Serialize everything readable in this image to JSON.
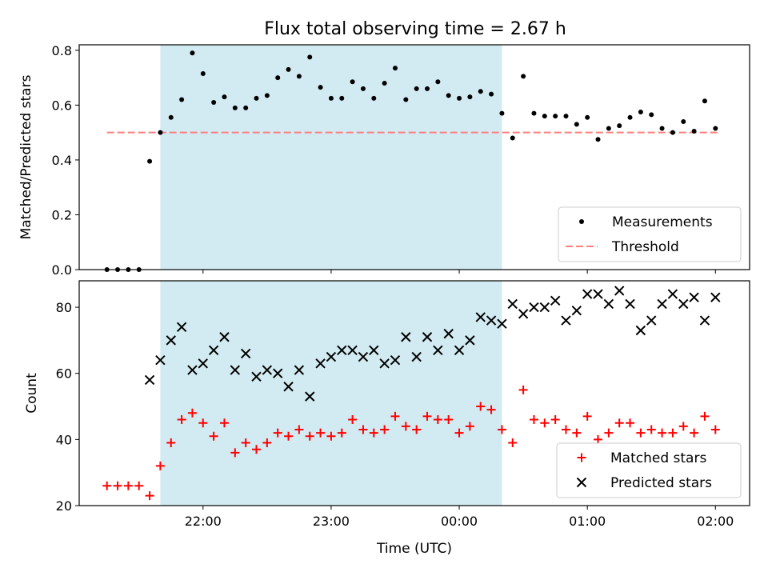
{
  "title": "Flux total observing time = 2.67 h",
  "colors": {
    "shade": "#add8e6",
    "measurements": "#000000",
    "threshold": "#ff7f7f",
    "matched": "#ff0000",
    "predicted": "#000000"
  },
  "chart_data": [
    {
      "type": "scatter",
      "ylabel": "Matched/Predicted stars",
      "xlim": [
        "21:02",
        "02:16"
      ],
      "ylim": [
        0,
        0.82
      ],
      "yticks": [
        0.0,
        0.2,
        0.4,
        0.6,
        0.8
      ],
      "ytick_labels": [
        "0.0",
        "0.2",
        "0.4",
        "0.6",
        "0.8"
      ],
      "shaded_interval": [
        "21:40",
        "00:20"
      ],
      "legend_position": "bottom-right",
      "legend": [
        "Measurements",
        "Threshold"
      ],
      "threshold": {
        "name": "Threshold",
        "y": 0.5,
        "x_range": [
          "21:15",
          "02:01"
        ],
        "style": "dashed"
      },
      "series": [
        {
          "name": "Measurements",
          "x": [
            "21:15",
            "21:20",
            "21:25",
            "21:30",
            "21:35",
            "21:40",
            "21:45",
            "21:50",
            "21:55",
            "22:00",
            "22:05",
            "22:10",
            "22:15",
            "22:20",
            "22:25",
            "22:30",
            "22:35",
            "22:40",
            "22:45",
            "22:50",
            "22:55",
            "23:00",
            "23:05",
            "23:10",
            "23:15",
            "23:20",
            "23:25",
            "23:30",
            "23:35",
            "23:40",
            "23:45",
            "23:50",
            "23:55",
            "00:00",
            "00:05",
            "00:10",
            "00:15",
            "00:20",
            "00:25",
            "00:30",
            "00:35",
            "00:40",
            "00:45",
            "00:50",
            "00:55",
            "01:00",
            "01:05",
            "01:10",
            "01:15",
            "01:20",
            "01:25",
            "01:30",
            "01:35",
            "01:40",
            "01:45",
            "01:50",
            "01:55",
            "02:00"
          ],
          "y": [
            0.0,
            0.0,
            0.0,
            0.0,
            0.395,
            0.5,
            0.555,
            0.62,
            0.79,
            0.715,
            0.61,
            0.63,
            0.59,
            0.59,
            0.625,
            0.635,
            0.7,
            0.73,
            0.705,
            0.775,
            0.665,
            0.625,
            0.625,
            0.685,
            0.66,
            0.625,
            0.68,
            0.735,
            0.62,
            0.66,
            0.66,
            0.685,
            0.635,
            0.625,
            0.63,
            0.65,
            0.64,
            0.57,
            0.48,
            0.705,
            0.57,
            0.56,
            0.56,
            0.56,
            0.53,
            0.555,
            0.475,
            0.515,
            0.525,
            0.555,
            0.575,
            0.565,
            0.515,
            0.5,
            0.54,
            0.505,
            0.615,
            0.515
          ]
        }
      ]
    },
    {
      "type": "scatter",
      "xlabel": "Time (UTC)",
      "ylabel": "Count",
      "xlim": [
        "21:02",
        "02:16"
      ],
      "ylim": [
        20,
        88
      ],
      "xticks": [
        "22:00",
        "23:00",
        "00:00",
        "01:00",
        "02:00"
      ],
      "yticks": [
        20,
        40,
        60,
        80
      ],
      "shaded_interval": [
        "21:40",
        "00:20"
      ],
      "legend_position": "bottom-right",
      "legend": [
        "Matched stars",
        "Predicted stars"
      ],
      "series": [
        {
          "name": "Matched stars",
          "marker": "plus",
          "x": [
            "21:15",
            "21:20",
            "21:25",
            "21:30",
            "21:35",
            "21:40",
            "21:45",
            "21:50",
            "21:55",
            "22:00",
            "22:05",
            "22:10",
            "22:15",
            "22:20",
            "22:25",
            "22:30",
            "22:35",
            "22:40",
            "22:45",
            "22:50",
            "22:55",
            "23:00",
            "23:05",
            "23:10",
            "23:15",
            "23:20",
            "23:25",
            "23:30",
            "23:35",
            "23:40",
            "23:45",
            "23:50",
            "23:55",
            "00:00",
            "00:05",
            "00:10",
            "00:15",
            "00:20",
            "00:25",
            "00:30",
            "00:35",
            "00:40",
            "00:45",
            "00:50",
            "00:55",
            "01:00",
            "01:05",
            "01:10",
            "01:15",
            "01:20",
            "01:25",
            "01:30",
            "01:35",
            "01:40",
            "01:45",
            "01:50",
            "01:55",
            "02:00"
          ],
          "y": [
            26,
            26,
            26,
            26,
            23,
            32,
            39,
            46,
            48,
            45,
            41,
            45,
            36,
            39,
            37,
            39,
            42,
            41,
            43,
            41,
            42,
            41,
            42,
            46,
            43,
            42,
            43,
            47,
            44,
            43,
            47,
            46,
            46,
            42,
            44,
            50,
            49,
            43,
            39,
            55,
            46,
            45,
            46,
            43,
            42,
            47,
            40,
            42,
            45,
            45,
            42,
            43,
            42,
            42,
            44,
            42,
            47,
            43
          ]
        },
        {
          "name": "Predicted stars",
          "marker": "x",
          "x": [
            "21:35",
            "21:40",
            "21:45",
            "21:50",
            "21:55",
            "22:00",
            "22:05",
            "22:10",
            "22:15",
            "22:20",
            "22:25",
            "22:30",
            "22:35",
            "22:40",
            "22:45",
            "22:50",
            "22:55",
            "23:00",
            "23:05",
            "23:10",
            "23:15",
            "23:20",
            "23:25",
            "23:30",
            "23:35",
            "23:40",
            "23:45",
            "23:50",
            "23:55",
            "00:00",
            "00:05",
            "00:10",
            "00:15",
            "00:20",
            "00:25",
            "00:30",
            "00:35",
            "00:40",
            "00:45",
            "00:50",
            "00:55",
            "01:00",
            "01:05",
            "01:10",
            "01:15",
            "01:20",
            "01:25",
            "01:30",
            "01:35",
            "01:40",
            "01:45",
            "01:50",
            "01:55",
            "02:00"
          ],
          "y": [
            58,
            64,
            70,
            74,
            61,
            63,
            67,
            71,
            61,
            66,
            59,
            61,
            60,
            56,
            61,
            53,
            63,
            65,
            67,
            67,
            65,
            67,
            63,
            64,
            71,
            65,
            71,
            67,
            72,
            67,
            70,
            77,
            76,
            75,
            81,
            78,
            80,
            80,
            82,
            76,
            79,
            84,
            84,
            81,
            85,
            81,
            73,
            76,
            81,
            84,
            81,
            83,
            76,
            83
          ]
        }
      ]
    }
  ]
}
